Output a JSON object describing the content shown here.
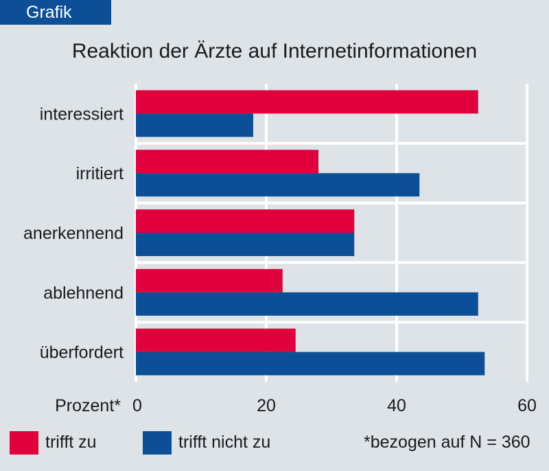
{
  "header": {
    "tag": "Grafik"
  },
  "footnote": "*bezogen auf N = 360",
  "chart_data": {
    "type": "bar",
    "orientation": "horizontal",
    "title": "Reaktion der Ärzte auf Internetinformationen",
    "xlabel": "Prozent*",
    "categories": [
      "interessiert",
      "irritiert",
      "anerkennend",
      "ablehnend",
      "überfordert"
    ],
    "series": [
      {
        "name": "trifft zu",
        "color": "#e0003c",
        "values": [
          52.5,
          28,
          33.5,
          22.5,
          24.5
        ]
      },
      {
        "name": "trifft nicht zu",
        "color": "#0d4f96",
        "values": [
          18,
          43.5,
          33.5,
          52.5,
          53.5
        ]
      }
    ],
    "xlim": [
      0,
      60
    ],
    "xticks": [
      0,
      20,
      40,
      60
    ],
    "grid": true,
    "legend": "bottom-left"
  }
}
